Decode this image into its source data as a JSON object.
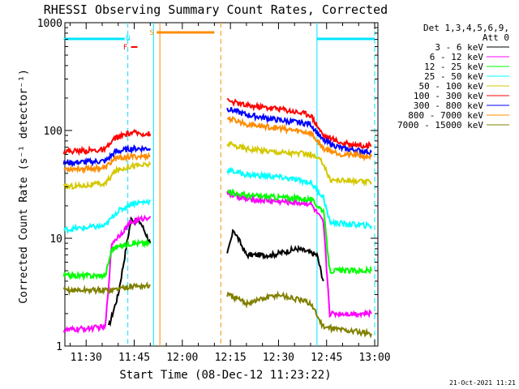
{
  "chart_data": {
    "type": "line",
    "title": "RHESSI Observing Summary Count Rates, Corrected",
    "xlabel": "Start Time (08-Dec-12 11:23:22)",
    "ylabel": "Corrected Count Rate (s⁻¹ detector⁻¹)",
    "y_scale": "log",
    "ylim": [
      1,
      1000
    ],
    "xlim": [
      "11:23:22",
      "13:01:00"
    ],
    "x_ticks": [
      "11:30",
      "11:45",
      "12:00",
      "12:15",
      "12:30",
      "12:45",
      "13:00"
    ],
    "y_ticks": [
      "1",
      "10",
      "100",
      "1000"
    ],
    "legend": {
      "placement": "top-right",
      "header_lines": [
        "Det 1,3,4,5,6,9,",
        "Att 0"
      ]
    },
    "markers": [
      {
        "label": "N",
        "color": "#00e5ff",
        "type": "night",
        "intervals": [
          [
            "11:23",
            "11:42"
          ],
          [
            "12:42",
            "13:00"
          ]
        ]
      },
      {
        "label": "F",
        "color": "#ff0000",
        "type": "flare",
        "intervals": [
          [
            "11:44",
            "11:46"
          ]
        ]
      },
      {
        "label": "S",
        "color": "#ff8c00",
        "type": "saa",
        "intervals": [
          [
            "11:52",
            "12:10"
          ]
        ]
      }
    ],
    "vlines": [
      {
        "time": "11:43",
        "color": "#00e5ff",
        "style": "dashed"
      },
      {
        "time": "11:51",
        "color": "#00e5ff",
        "style": "solid"
      },
      {
        "time": "11:53",
        "color": "#ff8c00",
        "style": "solid"
      },
      {
        "time": "12:12",
        "color": "#ff8c00",
        "style": "dashed"
      },
      {
        "time": "12:42",
        "color": "#00e5ff",
        "style": "solid"
      },
      {
        "time": "13:00",
        "color": "#00e5ff",
        "style": "dashed"
      }
    ],
    "series": [
      {
        "name": "3 - 6 keV",
        "color": "#000000",
        "segments": [
          [
            [
              "11:37",
              1.5
            ],
            [
              "11:40",
              3
            ],
            [
              "11:44",
              15
            ],
            [
              "11:47",
              14
            ],
            [
              "11:50",
              9
            ]
          ],
          [
            [
              "12:14",
              7
            ],
            [
              "12:16",
              12
            ],
            [
              "12:20",
              7
            ],
            [
              "12:28",
              7
            ],
            [
              "12:36",
              8
            ],
            [
              "12:42",
              7
            ],
            [
              "12:44",
              4
            ]
          ]
        ]
      },
      {
        "name": "6 - 12 keV",
        "color": "#ff00ff",
        "segments": [
          [
            [
              "11:23",
              1.4
            ],
            [
              "11:36",
              1.5
            ],
            [
              "11:38",
              9
            ],
            [
              "11:44",
              14
            ],
            [
              "11:50",
              16
            ]
          ],
          [
            [
              "12:14",
              26
            ],
            [
              "12:20",
              23
            ],
            [
              "12:30",
              22
            ],
            [
              "12:40",
              21
            ],
            [
              "12:44",
              14
            ],
            [
              "12:46",
              2
            ],
            [
              "12:59",
              2
            ]
          ]
        ]
      },
      {
        "name": "12 - 25 keV",
        "color": "#00ff00",
        "segments": [
          [
            [
              "11:23",
              4.5
            ],
            [
              "11:36",
              4.5
            ],
            [
              "11:38",
              8
            ],
            [
              "11:44",
              9
            ],
            [
              "11:50",
              9
            ]
          ],
          [
            [
              "12:14",
              27
            ],
            [
              "12:20",
              25
            ],
            [
              "12:30",
              24
            ],
            [
              "12:40",
              23
            ],
            [
              "12:44",
              18
            ],
            [
              "12:46",
              5
            ],
            [
              "12:59",
              5
            ]
          ]
        ]
      },
      {
        "name": "25 - 50 keV",
        "color": "#00ffff",
        "segments": [
          [
            [
              "11:23",
              12
            ],
            [
              "11:36",
              13
            ],
            [
              "11:39",
              17
            ],
            [
              "11:44",
              21
            ],
            [
              "11:50",
              22
            ]
          ],
          [
            [
              "12:14",
              43
            ],
            [
              "12:20",
              39
            ],
            [
              "12:30",
              37
            ],
            [
              "12:40",
              33
            ],
            [
              "12:44",
              24
            ],
            [
              "12:46",
              14
            ],
            [
              "12:59",
              13
            ]
          ]
        ]
      },
      {
        "name": "50 - 100 keV",
        "color": "#d4c800",
        "segments": [
          [
            [
              "11:23",
              30
            ],
            [
              "11:36",
              32
            ],
            [
              "11:39",
              42
            ],
            [
              "11:44",
              47
            ],
            [
              "11:50",
              48
            ]
          ],
          [
            [
              "12:14",
              75
            ],
            [
              "12:20",
              68
            ],
            [
              "12:30",
              63
            ],
            [
              "12:40",
              60
            ],
            [
              "12:44",
              50
            ],
            [
              "12:46",
              35
            ],
            [
              "12:59",
              33
            ]
          ]
        ]
      },
      {
        "name": "100 - 300 keV",
        "color": "#ff0000",
        "segments": [
          [
            [
              "11:23",
              64
            ],
            [
              "11:36",
              66
            ],
            [
              "11:39",
              85
            ],
            [
              "11:44",
              95
            ],
            [
              "11:50",
              93
            ]
          ],
          [
            [
              "12:14",
              190
            ],
            [
              "12:20",
              170
            ],
            [
              "12:30",
              160
            ],
            [
              "12:40",
              140
            ],
            [
              "12:44",
              90
            ],
            [
              "12:50",
              76
            ],
            [
              "12:59",
              72
            ]
          ]
        ]
      },
      {
        "name": "300 - 800 keV",
        "color": "#0000ff",
        "segments": [
          [
            [
              "11:23",
              50
            ],
            [
              "11:36",
              52
            ],
            [
              "11:39",
              63
            ],
            [
              "11:44",
              68
            ],
            [
              "11:50",
              68
            ]
          ],
          [
            [
              "12:14",
              160
            ],
            [
              "12:20",
              140
            ],
            [
              "12:30",
              125
            ],
            [
              "12:40",
              115
            ],
            [
              "12:44",
              80
            ],
            [
              "12:50",
              68
            ],
            [
              "12:59",
              63
            ]
          ]
        ]
      },
      {
        "name": "800 - 7000 keV",
        "color": "#ff8c00",
        "segments": [
          [
            [
              "11:23",
              44
            ],
            [
              "11:36",
              45
            ],
            [
              "11:39",
              55
            ],
            [
              "11:44",
              57
            ],
            [
              "11:50",
              58
            ]
          ],
          [
            [
              "12:14",
              130
            ],
            [
              "12:20",
              115
            ],
            [
              "12:30",
              105
            ],
            [
              "12:40",
              95
            ],
            [
              "12:44",
              68
            ],
            [
              "12:50",
              60
            ],
            [
              "12:59",
              57
            ]
          ]
        ]
      },
      {
        "name": "7000 - 15000 keV",
        "color": "#808000",
        "segments": [
          [
            [
              "11:23",
              3.3
            ],
            [
              "11:36",
              3.3
            ],
            [
              "11:38",
              3.3
            ],
            [
              "11:44",
              3.6
            ],
            [
              "11:50",
              3.6
            ]
          ],
          [
            [
              "12:14",
              3
            ],
            [
              "12:20",
              2.5
            ],
            [
              "12:30",
              3
            ],
            [
              "12:40",
              2.5
            ],
            [
              "12:44",
              1.5
            ],
            [
              "12:59",
              1.3
            ]
          ]
        ]
      }
    ]
  },
  "footer": {
    "timestamp": "21-Oct-2021 11:21"
  }
}
